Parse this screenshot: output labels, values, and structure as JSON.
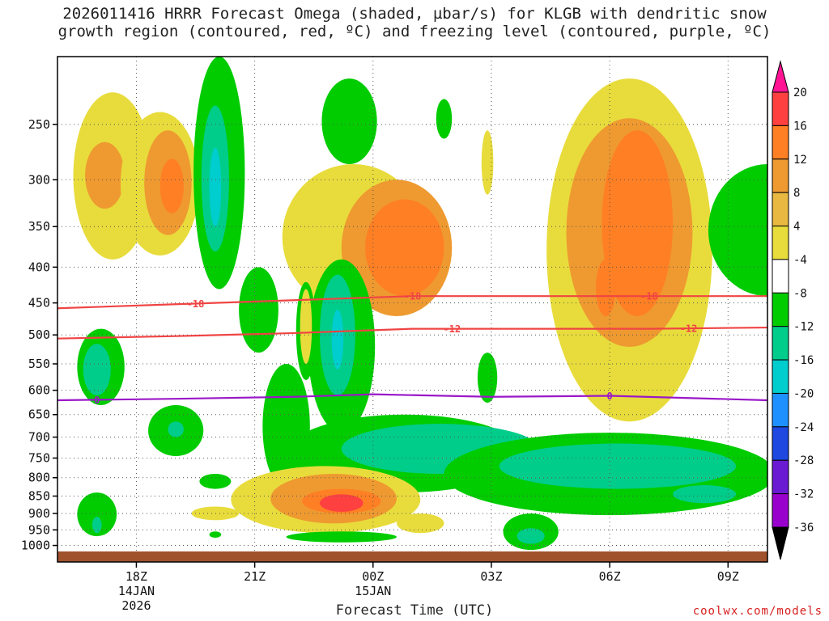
{
  "title_line1": "2026011416 HRRR Forecast Omega (shaded, µbar/s) for KLGB with dendritic snow",
  "title_line2": "growth region (contoured, red, ºC) and freezing level (contoured, purple, ºC)",
  "xlabel": "Forecast Time (UTC)",
  "credit": "coolwx.com/models",
  "chart_data": {
    "type": "heatmap",
    "title": "2026011416 HRRR Forecast Omega (shaded, µbar/s) for KLGB with dendritic snow growth region (contoured, red, ºC) and freezing level (contoured, purple, ºC)",
    "xlabel": "Forecast Time (UTC)",
    "ylabel": "",
    "x_ticks": [
      {
        "label": "18Z",
        "sub": [
          "14JAN",
          "2026"
        ],
        "hour": 2
      },
      {
        "label": "21Z",
        "sub": [],
        "hour": 5
      },
      {
        "label": "00Z",
        "sub": [
          "15JAN"
        ],
        "hour": 8
      },
      {
        "label": "03Z",
        "sub": [],
        "hour": 11
      },
      {
        "label": "06Z",
        "sub": [],
        "hour": 14
      },
      {
        "label": "09Z",
        "sub": [],
        "hour": 17
      }
    ],
    "xlim_hours": [
      0,
      18
    ],
    "y_ticks": [
      250,
      300,
      350,
      400,
      450,
      500,
      550,
      600,
      650,
      700,
      750,
      800,
      850,
      900,
      950,
      1000
    ],
    "ylim_hPa": [
      1020,
      200
    ],
    "y_scale": "log-pressure",
    "grid": true,
    "colorbar": {
      "labels": [
        20,
        16,
        12,
        8,
        4,
        -4,
        -8,
        -12,
        -16,
        -20,
        -24,
        -28,
        -32,
        -36
      ],
      "colors": [
        "#ff1493",
        "#ff4040",
        "#ff7f24",
        "#ee9a30",
        "#e8b840",
        "#e8dc3c",
        "#ffffff",
        "#00cc00",
        "#00cd8a",
        "#00cdcd",
        "#1e90ff",
        "#1e48e0",
        "#6a1ad2",
        "#9a00cd",
        "#a9a9a9",
        "#000000"
      ]
    },
    "contours": [
      {
        "name": "dendritic -18",
        "color": "#f04444",
        "label": "-18",
        "points": [
          [
            0,
            458
          ],
          [
            3,
            452
          ],
          [
            6,
            446
          ],
          [
            9,
            440
          ],
          [
            12,
            440
          ],
          [
            15,
            440
          ],
          [
            18,
            440
          ]
        ],
        "label_hours": [
          3.5,
          9,
          15
        ]
      },
      {
        "name": "dendritic -12",
        "color": "#f04444",
        "label": "-12",
        "points": [
          [
            0,
            506
          ],
          [
            3,
            502
          ],
          [
            6,
            497
          ],
          [
            9,
            490
          ],
          [
            12,
            490
          ],
          [
            15,
            490
          ],
          [
            18,
            488
          ]
        ],
        "label_hours": [
          10,
          16
        ]
      },
      {
        "name": "freezing level 0",
        "color": "#9a18c8",
        "label": "0",
        "points": [
          [
            0,
            620
          ],
          [
            3,
            617
          ],
          [
            6,
            613
          ],
          [
            8,
            608
          ],
          [
            11,
            613
          ],
          [
            14,
            611
          ],
          [
            18,
            620
          ]
        ],
        "label_hours": [
          1,
          14
        ]
      }
    ],
    "omega_features": [
      {
        "v": 5,
        "cx": 1.4,
        "cy": 300,
        "rx": 1.0,
        "ry_hPa": [
          225,
          390
        ]
      },
      {
        "v": 9,
        "cx": 1.2,
        "cy": 290,
        "rx": 0.5,
        "ry_hPa": [
          265,
          330
        ]
      },
      {
        "v": 5,
        "cx": 2.6,
        "cy": 310,
        "rx": 1.0,
        "ry_hPa": [
          240,
          385
        ]
      },
      {
        "v": 9,
        "cx": 2.8,
        "cy": 295,
        "rx": 0.6,
        "ry_hPa": [
          255,
          360
        ]
      },
      {
        "v": 13,
        "cx": 2.9,
        "cy": 300,
        "rx": 0.3,
        "ry_hPa": [
          280,
          335
        ]
      },
      {
        "v": -6,
        "cx": 4.1,
        "cy": 330,
        "rx": 0.65,
        "ry_hPa": [
          200,
          430
        ]
      },
      {
        "v": -10,
        "cx": 4.0,
        "cy": 310,
        "rx": 0.35,
        "ry_hPa": [
          235,
          380
        ]
      },
      {
        "v": -14,
        "cx": 4.0,
        "cy": 305,
        "rx": 0.15,
        "ry_hPa": [
          270,
          350
        ]
      },
      {
        "v": -6,
        "cx": 5.1,
        "cy": 450,
        "rx": 0.5,
        "ry_hPa": [
          400,
          530
        ]
      },
      {
        "v": -6,
        "cx": 5.8,
        "cy": 800,
        "rx": 0.6,
        "ry_hPa": [
          550,
          830
        ]
      },
      {
        "v": 5,
        "cx": 7.5,
        "cy": 350,
        "rx": 1.8,
        "ry_hPa": [
          285,
          460
        ]
      },
      {
        "v": 9,
        "cx": 8.6,
        "cy": 360,
        "rx": 1.4,
        "ry_hPa": [
          300,
          470
        ]
      },
      {
        "v": 13,
        "cx": 8.8,
        "cy": 370,
        "rx": 1.0,
        "ry_hPa": [
          320,
          440
        ]
      },
      {
        "v": -6,
        "cx": 7.2,
        "cy": 510,
        "rx": 0.85,
        "ry_hPa": [
          390,
          690
        ]
      },
      {
        "v": -10,
        "cx": 7.1,
        "cy": 500,
        "rx": 0.45,
        "ry_hPa": [
          410,
          610
        ]
      },
      {
        "v": -14,
        "cx": 7.1,
        "cy": 500,
        "rx": 0.15,
        "ry_hPa": [
          460,
          560
        ]
      },
      {
        "v": -6,
        "cx": 6.3,
        "cy": 500,
        "rx": 0.25,
        "ry_hPa": [
          420,
          580
        ]
      },
      {
        "v": 5,
        "cx": 6.3,
        "cy": 470,
        "rx": 0.15,
        "ry_hPa": [
          430,
          550
        ]
      },
      {
        "v": -6,
        "cx": 7.4,
        "cy": 250,
        "rx": 0.7,
        "ry_hPa": [
          215,
          285
        ]
      },
      {
        "v": -6,
        "cx": 9.8,
        "cy": 240,
        "rx": 0.2,
        "ry_hPa": [
          230,
          262
        ]
      },
      {
        "v": 5,
        "cx": 10.9,
        "cy": 285,
        "rx": 0.15,
        "ry_hPa": [
          255,
          315
        ]
      },
      {
        "v": -6,
        "cx": 10.9,
        "cy": 580,
        "rx": 0.25,
        "ry_hPa": [
          530,
          625
        ]
      },
      {
        "v": 5,
        "cx": 14.5,
        "cy": 360,
        "rx": 2.1,
        "ry_hPa": [
          215,
          665
        ]
      },
      {
        "v": 9,
        "cx": 14.5,
        "cy": 340,
        "rx": 1.6,
        "ry_hPa": [
          245,
          520
        ]
      },
      {
        "v": 13,
        "cx": 14.7,
        "cy": 310,
        "rx": 0.9,
        "ry_hPa": [
          255,
          470
        ]
      },
      {
        "v": 13,
        "cx": 13.9,
        "cy": 430,
        "rx": 0.25,
        "ry_hPa": [
          390,
          470
        ]
      },
      {
        "v": -6,
        "cx": 18.0,
        "cy": 340,
        "rx": 1.5,
        "ry_hPa": [
          285,
          440
        ]
      },
      {
        "v": -6,
        "cx": 8.8,
        "cy": 720,
        "rx": 3.0,
        "ry_hPa": [
          650,
          840
        ]
      },
      {
        "v": -10,
        "cx": 9.7,
        "cy": 745,
        "rx": 2.5,
        "ry_hPa": [
          670,
          790
        ]
      },
      {
        "v": -6,
        "cx": 14.0,
        "cy": 800,
        "rx": 4.2,
        "ry_hPa": [
          690,
          905
        ]
      },
      {
        "v": -10,
        "cx": 14.2,
        "cy": 770,
        "rx": 3.0,
        "ry_hPa": [
          715,
          830
        ]
      },
      {
        "v": -10,
        "cx": 16.4,
        "cy": 840,
        "rx": 0.8,
        "ry_hPa": [
          820,
          870
        ]
      },
      {
        "v": -6,
        "cx": 1.1,
        "cy": 560,
        "rx": 0.6,
        "ry_hPa": [
          490,
          630
        ]
      },
      {
        "v": -10,
        "cx": 1.0,
        "cy": 555,
        "rx": 0.35,
        "ry_hPa": [
          515,
          610
        ]
      },
      {
        "v": -6,
        "cx": 3.0,
        "cy": 680,
        "rx": 0.7,
        "ry_hPa": [
          630,
          745
        ]
      },
      {
        "v": -10,
        "cx": 3.0,
        "cy": 680,
        "rx": 0.2,
        "ry_hPa": [
          665,
          700
        ]
      },
      {
        "v": -6,
        "cx": 4.0,
        "cy": 810,
        "rx": 0.4,
        "ry_hPa": [
          790,
          830
        ]
      },
      {
        "v": -6,
        "cx": 1.0,
        "cy": 910,
        "rx": 0.5,
        "ry_hPa": [
          840,
          970
        ]
      },
      {
        "v": -10,
        "cx": 1.0,
        "cy": 935,
        "rx": 0.12,
        "ry_hPa": [
          910,
          960
        ]
      },
      {
        "v": 5,
        "cx": 6.8,
        "cy": 860,
        "rx": 2.4,
        "ry_hPa": [
          770,
          960
        ]
      },
      {
        "v": 9,
        "cx": 7.0,
        "cy": 860,
        "rx": 1.6,
        "ry_hPa": [
          790,
          930
        ]
      },
      {
        "v": 13,
        "cx": 7.2,
        "cy": 860,
        "rx": 1.0,
        "ry_hPa": [
          830,
          900
        ]
      },
      {
        "v": 17,
        "cx": 7.2,
        "cy": 870,
        "rx": 0.55,
        "ry_hPa": [
          845,
          895
        ]
      },
      {
        "v": 5,
        "cx": 4.0,
        "cy": 900,
        "rx": 0.6,
        "ry_hPa": [
          880,
          920
        ]
      },
      {
        "v": -6,
        "cx": 7.2,
        "cy": 970,
        "rx": 1.4,
        "ry_hPa": [
          955,
          990
        ]
      },
      {
        "v": 5,
        "cx": 9.2,
        "cy": 930,
        "rx": 0.6,
        "ry_hPa": [
          900,
          960
        ]
      },
      {
        "v": -6,
        "cx": 12.0,
        "cy": 960,
        "rx": 0.7,
        "ry_hPa": [
          900,
          1015
        ]
      },
      {
        "v": -10,
        "cx": 12.0,
        "cy": 970,
        "rx": 0.35,
        "ry_hPa": [
          945,
          995
        ]
      },
      {
        "v": -6,
        "cx": 4.0,
        "cy": 965,
        "rx": 0.15,
        "ry_hPa": [
          955,
          975
        ]
      }
    ]
  }
}
